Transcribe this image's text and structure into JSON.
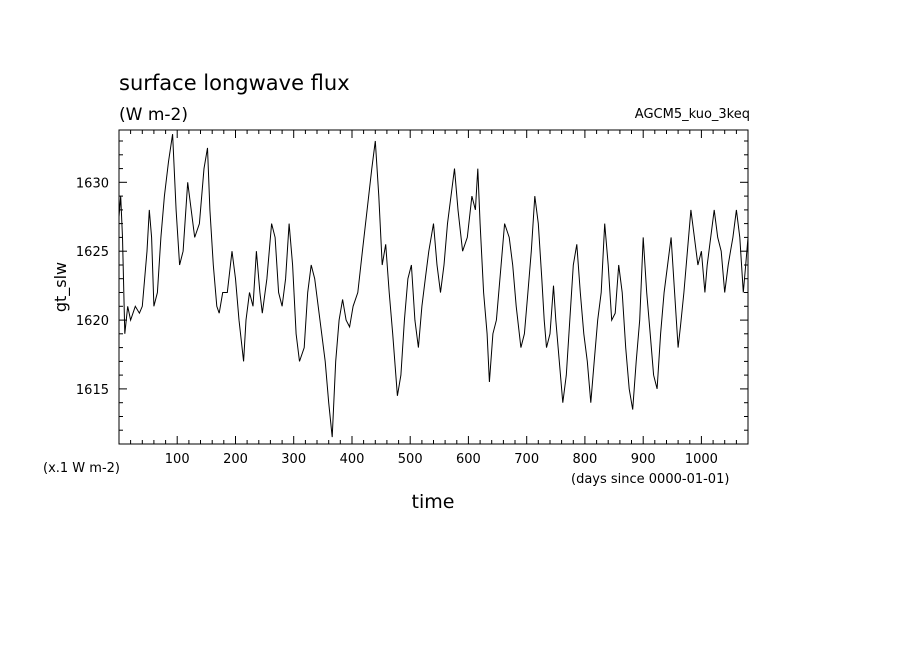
{
  "chart_data": {
    "type": "line",
    "title": "surface longwave flux",
    "subtitle": "(W m-2)",
    "experiment": "AGCM5_kuo_3keq",
    "ylabel": "gt_slw",
    "xlabel": "time",
    "y_unit_note": "(x.1 W m-2)",
    "x_unit_note": "(days since 0000-01-01)",
    "xlim": [
      0,
      1080
    ],
    "ylim": [
      1611,
      1633.8
    ],
    "x_ticks": [
      100,
      200,
      300,
      400,
      500,
      600,
      700,
      800,
      900,
      1000
    ],
    "x_tick_labels": [
      "100",
      "200",
      "300",
      "400",
      "500",
      "600",
      "700",
      "800",
      "900",
      "1000"
    ],
    "y_ticks": [
      1615,
      1620,
      1625,
      1630
    ],
    "y_tick_labels": [
      "1615",
      "1620",
      "1625",
      "1630"
    ],
    "grid": false,
    "line_color": "#000000",
    "series": [
      {
        "values": [
          [
            0,
            1627.5
          ],
          [
            3,
            1629
          ],
          [
            6,
            1626
          ],
          [
            10,
            1619
          ],
          [
            15,
            1621
          ],
          [
            20,
            1620
          ],
          [
            28,
            1621
          ],
          [
            35,
            1620.5
          ],
          [
            40,
            1621
          ],
          [
            48,
            1625
          ],
          [
            52,
            1628
          ],
          [
            56,
            1626
          ],
          [
            60,
            1621
          ],
          [
            66,
            1622
          ],
          [
            72,
            1626
          ],
          [
            78,
            1629
          ],
          [
            85,
            1631.5
          ],
          [
            92,
            1633.5
          ],
          [
            98,
            1628
          ],
          [
            104,
            1624
          ],
          [
            110,
            1625
          ],
          [
            118,
            1630
          ],
          [
            124,
            1628
          ],
          [
            130,
            1626
          ],
          [
            138,
            1627
          ],
          [
            146,
            1631
          ],
          [
            152,
            1632.5
          ],
          [
            156,
            1628
          ],
          [
            162,
            1624
          ],
          [
            168,
            1621
          ],
          [
            172,
            1620.5
          ],
          [
            178,
            1622
          ],
          [
            186,
            1622
          ],
          [
            194,
            1625
          ],
          [
            200,
            1623
          ],
          [
            206,
            1620
          ],
          [
            214,
            1617
          ],
          [
            218,
            1620
          ],
          [
            224,
            1622
          ],
          [
            230,
            1621
          ],
          [
            236,
            1625
          ],
          [
            242,
            1622
          ],
          [
            246,
            1620.5
          ],
          [
            254,
            1623
          ],
          [
            262,
            1627
          ],
          [
            268,
            1626
          ],
          [
            274,
            1622
          ],
          [
            280,
            1621
          ],
          [
            286,
            1623
          ],
          [
            292,
            1627
          ],
          [
            298,
            1624
          ],
          [
            304,
            1619
          ],
          [
            310,
            1617
          ],
          [
            318,
            1618
          ],
          [
            324,
            1622
          ],
          [
            330,
            1624
          ],
          [
            336,
            1623
          ],
          [
            342,
            1621
          ],
          [
            348,
            1619
          ],
          [
            354,
            1617
          ],
          [
            360,
            1614
          ],
          [
            366,
            1611.5
          ],
          [
            372,
            1617
          ],
          [
            378,
            1620
          ],
          [
            384,
            1621.5
          ],
          [
            390,
            1620
          ],
          [
            396,
            1619.5
          ],
          [
            402,
            1621
          ],
          [
            410,
            1622
          ],
          [
            418,
            1625
          ],
          [
            426,
            1628
          ],
          [
            434,
            1631
          ],
          [
            440,
            1633
          ],
          [
            446,
            1629
          ],
          [
            452,
            1624
          ],
          [
            458,
            1625.5
          ],
          [
            464,
            1622
          ],
          [
            470,
            1619
          ],
          [
            478,
            1614.5
          ],
          [
            484,
            1616
          ],
          [
            490,
            1620
          ],
          [
            496,
            1623
          ],
          [
            502,
            1624
          ],
          [
            508,
            1620
          ],
          [
            514,
            1618
          ],
          [
            520,
            1621
          ],
          [
            526,
            1623
          ],
          [
            532,
            1625
          ],
          [
            540,
            1627
          ],
          [
            546,
            1624
          ],
          [
            552,
            1622
          ],
          [
            558,
            1624
          ],
          [
            564,
            1627
          ],
          [
            570,
            1629
          ],
          [
            576,
            1631
          ],
          [
            582,
            1628
          ],
          [
            590,
            1625
          ],
          [
            598,
            1626
          ],
          [
            606,
            1629
          ],
          [
            612,
            1628
          ],
          [
            616,
            1631
          ],
          [
            620,
            1627
          ],
          [
            626,
            1622
          ],
          [
            632,
            1619
          ],
          [
            636,
            1615.5
          ],
          [
            642,
            1619
          ],
          [
            648,
            1620
          ],
          [
            656,
            1624
          ],
          [
            662,
            1627
          ],
          [
            670,
            1626
          ],
          [
            676,
            1624
          ],
          [
            682,
            1621
          ],
          [
            690,
            1618
          ],
          [
            696,
            1619
          ],
          [
            702,
            1622
          ],
          [
            708,
            1625
          ],
          [
            714,
            1629
          ],
          [
            720,
            1627
          ],
          [
            726,
            1623
          ],
          [
            730,
            1620
          ],
          [
            734,
            1618
          ],
          [
            740,
            1619
          ],
          [
            746,
            1622.5
          ],
          [
            750,
            1620
          ],
          [
            756,
            1617
          ],
          [
            762,
            1614
          ],
          [
            768,
            1616
          ],
          [
            774,
            1620
          ],
          [
            780,
            1624
          ],
          [
            786,
            1625.5
          ],
          [
            792,
            1622
          ],
          [
            798,
            1619
          ],
          [
            804,
            1617
          ],
          [
            810,
            1614
          ],
          [
            816,
            1617
          ],
          [
            822,
            1620
          ],
          [
            828,
            1622
          ],
          [
            834,
            1627
          ],
          [
            840,
            1624
          ],
          [
            846,
            1620
          ],
          [
            852,
            1620.5
          ],
          [
            858,
            1624
          ],
          [
            864,
            1622
          ],
          [
            870,
            1618
          ],
          [
            876,
            1615
          ],
          [
            882,
            1613.5
          ],
          [
            888,
            1617
          ],
          [
            894,
            1620
          ],
          [
            900,
            1626
          ],
          [
            906,
            1622
          ],
          [
            912,
            1619
          ],
          [
            918,
            1616
          ],
          [
            924,
            1615
          ],
          [
            930,
            1619
          ],
          [
            936,
            1622
          ],
          [
            942,
            1624
          ],
          [
            948,
            1626
          ],
          [
            954,
            1622
          ],
          [
            960,
            1618
          ],
          [
            964,
            1619.5
          ],
          [
            970,
            1622
          ],
          [
            976,
            1625
          ],
          [
            982,
            1628
          ],
          [
            988,
            1626
          ],
          [
            994,
            1624
          ],
          [
            1000,
            1625
          ],
          [
            1006,
            1622
          ],
          [
            1010,
            1624
          ],
          [
            1016,
            1626
          ],
          [
            1022,
            1628
          ],
          [
            1028,
            1626
          ],
          [
            1034,
            1625
          ],
          [
            1040,
            1622
          ],
          [
            1046,
            1624
          ],
          [
            1050,
            1625
          ],
          [
            1054,
            1626
          ],
          [
            1060,
            1628
          ],
          [
            1066,
            1626
          ],
          [
            1072,
            1622
          ],
          [
            1076,
            1624
          ],
          [
            1080,
            1626
          ]
        ]
      }
    ]
  }
}
